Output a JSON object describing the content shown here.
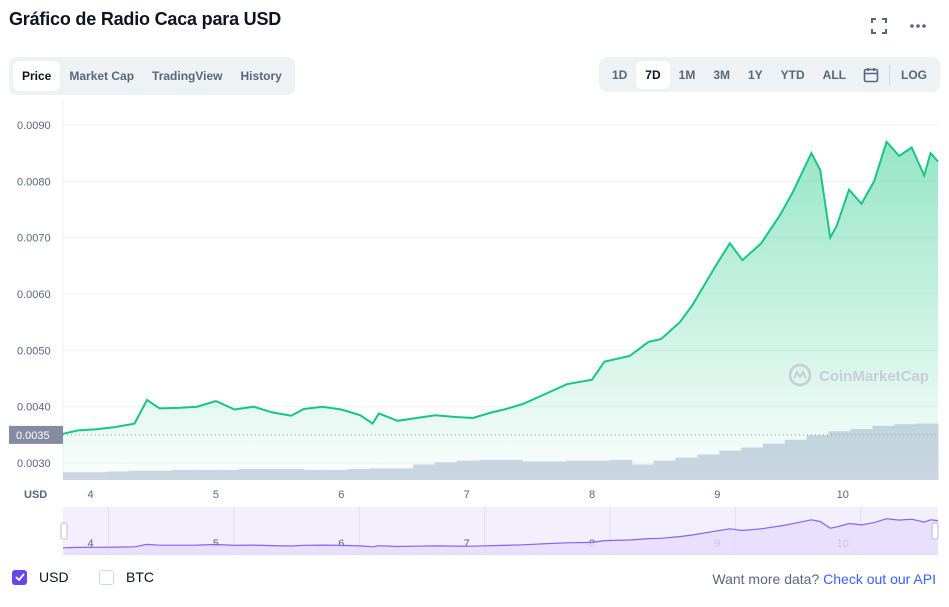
{
  "header": {
    "title": "Gráfico de Radio Caca para USD",
    "fullscreen_icon": "fullscreen-icon",
    "more_icon": "more-horizontal-icon"
  },
  "tabs": [
    "Price",
    "Market Cap",
    "TradingView",
    "History"
  ],
  "active_tab": "Price",
  "ranges": [
    "1D",
    "7D",
    "1M",
    "3M",
    "1Y",
    "YTD",
    "ALL"
  ],
  "active_range": "7D",
  "calendar_icon": "calendar-icon",
  "log_label": "LOG",
  "colors": {
    "line": "#16c784",
    "volume": "#cfd6e4",
    "navigator_line": "#8066f2",
    "navigator_fill": "#e6dcfc",
    "accent": "#3861fb"
  },
  "watermark": "CoinMarketCap",
  "current_price_label": "0.0035",
  "legend": {
    "usd": {
      "label": "USD",
      "checked": true
    },
    "btc": {
      "label": "BTC",
      "checked": false
    }
  },
  "footer": {
    "text": "Want more data?",
    "link": "Check out our API"
  },
  "chart_data": {
    "type": "line",
    "currency_label": "USD",
    "x_ticks": [
      "4",
      "5",
      "6",
      "7",
      "8",
      "9",
      "10"
    ],
    "x_tick_positions": [
      4,
      5,
      6,
      7,
      8,
      9,
      10
    ],
    "xlim": [
      3.78,
      10.76
    ],
    "y_ticks": [
      "0.0030",
      "0.0040",
      "0.0050",
      "0.0060",
      "0.0070",
      "0.0080",
      "0.0090"
    ],
    "ylim": [
      0.0027,
      0.0093
    ],
    "grid": true,
    "series": [
      {
        "values": [
          [
            3.78,
            0.00352
          ],
          [
            3.9,
            0.00358
          ],
          [
            4.05,
            0.0036
          ],
          [
            4.2,
            0.00364
          ],
          [
            4.35,
            0.0037
          ],
          [
            4.45,
            0.00412
          ],
          [
            4.55,
            0.00397
          ],
          [
            4.7,
            0.00398
          ],
          [
            4.85,
            0.004
          ],
          [
            5.0,
            0.0041
          ],
          [
            5.15,
            0.00395
          ],
          [
            5.3,
            0.004
          ],
          [
            5.45,
            0.0039
          ],
          [
            5.6,
            0.00384
          ],
          [
            5.7,
            0.00396
          ],
          [
            5.85,
            0.004
          ],
          [
            6.0,
            0.00395
          ],
          [
            6.15,
            0.00385
          ],
          [
            6.25,
            0.0037
          ],
          [
            6.3,
            0.00388
          ],
          [
            6.45,
            0.00375
          ],
          [
            6.6,
            0.0038
          ],
          [
            6.75,
            0.00385
          ],
          [
            6.9,
            0.00382
          ],
          [
            7.05,
            0.0038
          ],
          [
            7.2,
            0.0039
          ],
          [
            7.3,
            0.00395
          ],
          [
            7.45,
            0.00405
          ],
          [
            7.6,
            0.0042
          ],
          [
            7.8,
            0.0044
          ],
          [
            8.0,
            0.00448
          ],
          [
            8.1,
            0.0048
          ],
          [
            8.3,
            0.0049
          ],
          [
            8.45,
            0.00515
          ],
          [
            8.55,
            0.0052
          ],
          [
            8.7,
            0.0055
          ],
          [
            8.8,
            0.0058
          ],
          [
            9.0,
            0.00655
          ],
          [
            9.1,
            0.0069
          ],
          [
            9.2,
            0.0066
          ],
          [
            9.35,
            0.0069
          ],
          [
            9.5,
            0.0074
          ],
          [
            9.6,
            0.0078
          ],
          [
            9.75,
            0.0085
          ],
          [
            9.82,
            0.0082
          ],
          [
            9.9,
            0.007
          ],
          [
            9.95,
            0.0072
          ],
          [
            10.05,
            0.00785
          ],
          [
            10.15,
            0.0076
          ],
          [
            10.25,
            0.008
          ],
          [
            10.35,
            0.0087
          ],
          [
            10.45,
            0.00845
          ],
          [
            10.55,
            0.0086
          ],
          [
            10.65,
            0.0081
          ],
          [
            10.7,
            0.0085
          ],
          [
            10.76,
            0.00835
          ]
        ]
      }
    ],
    "volume": [
      0.1,
      0.1,
      0.11,
      0.12,
      0.12,
      0.13,
      0.13,
      0.13,
      0.14,
      0.14,
      0.14,
      0.13,
      0.13,
      0.14,
      0.15,
      0.15,
      0.2,
      0.23,
      0.25,
      0.26,
      0.26,
      0.24,
      0.24,
      0.25,
      0.25,
      0.26,
      0.2,
      0.25,
      0.29,
      0.33,
      0.38,
      0.42,
      0.47,
      0.52,
      0.58,
      0.63,
      0.66,
      0.7,
      0.72,
      0.73
    ]
  }
}
